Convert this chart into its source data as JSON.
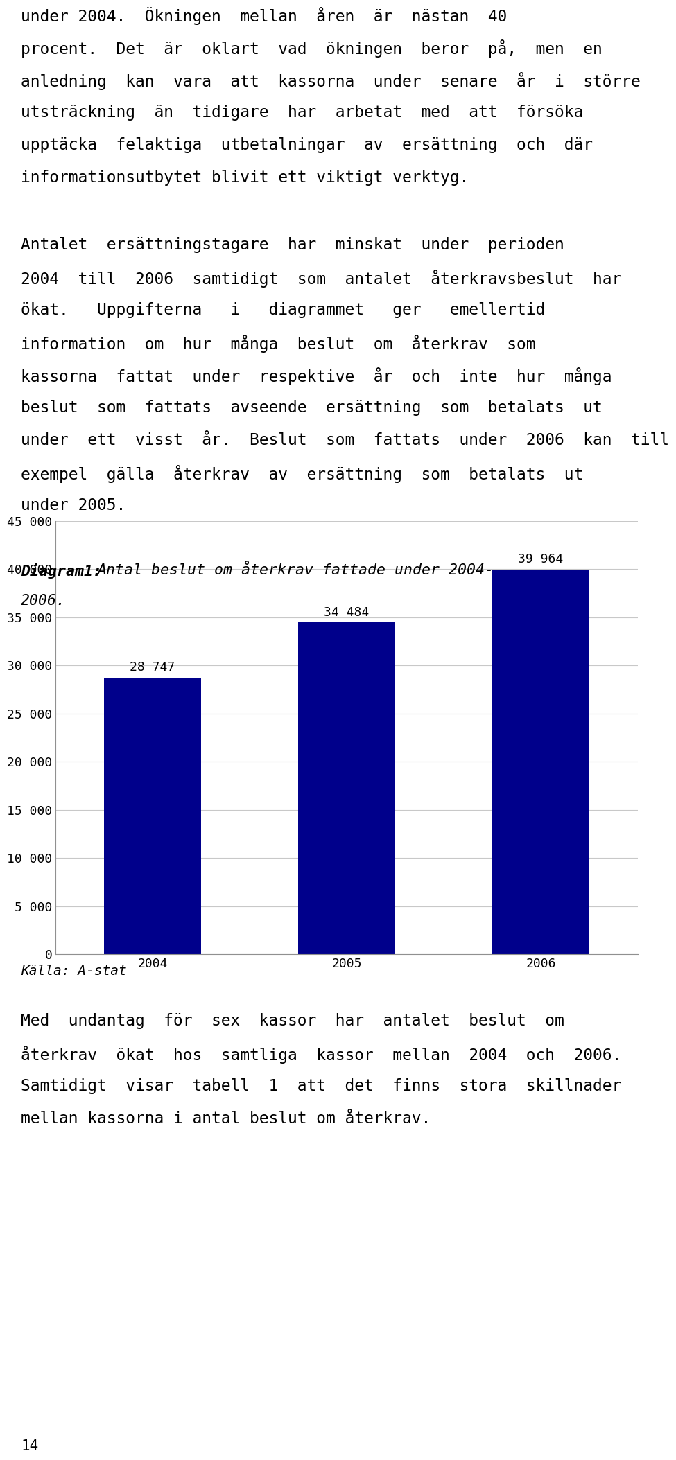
{
  "para1_lines": [
    "under 2004.  Ökningen  mellan  åren  är  nästan  40",
    "procent.  Det  är  oklart  vad  ökningen  beror  på,  men  en",
    "anledning  kan  vara  att  kassorna  under  senare  år  i  större",
    "utsträckning  än  tidigare  har  arbetat  med  att  försöka",
    "upptäcka  felaktiga  utbetalningar  av  ersättning  och  där",
    "informationsutbytet blivit ett viktigt verktyg."
  ],
  "para2_lines": [
    "Antalet  ersättningstagare  har  minskat  under  perioden",
    "2004  till  2006  samtidigt  som  antalet  återkravsbeslut  har",
    "ökat.   Uppgifterna   i   diagrammet   ger   emellertid",
    "information  om  hur  många  beslut  om  återkrav  som",
    "kassorna  fattat  under  respektive  år  och  inte  hur  många",
    "beslut  som  fattats  avseende  ersättning  som  betalats  ut",
    "under  ett  visst  år.  Beslut  som  fattats  under  2006  kan  till",
    "exempel  gälla  återkrav  av  ersättning  som  betalats  ut",
    "under 2005."
  ],
  "diagram_title_bold": "Diagram1:",
  "diagram_title_italic": " Antal beslut om återkrav fattade under 2004-\n2006.",
  "categories": [
    "2004",
    "2005",
    "2006"
  ],
  "values": [
    28747,
    34484,
    39964
  ],
  "bar_color": "#00008B",
  "ylim": [
    0,
    45000
  ],
  "yticks": [
    0,
    5000,
    10000,
    15000,
    20000,
    25000,
    30000,
    35000,
    40000,
    45000
  ],
  "source_label": "Källa: A-stat",
  "post_para_lines": [
    "Med  undantag  för  sex  kassor  har  antalet  beslut  om",
    "återkrav  ökat  hos  samtliga  kassor  mellan  2004  och  2006.",
    "Samtidigt  visar  tabell  1  att  det  finns  stora  skillnader",
    "mellan kassorna i antal beslut om återkrav."
  ],
  "footer": "14",
  "bar_labels": [
    "28 747",
    "34 484",
    "39 964"
  ],
  "text_color": "#000000",
  "bg_color": "#ffffff",
  "chart_bg": "#ffffff",
  "grid_color": "#c8c8c8",
  "font_size_body": 16.5,
  "font_size_diagram_title": 15.5,
  "font_size_bar_label": 13,
  "font_size_axis": 13,
  "font_size_source": 14,
  "font_size_footer": 15
}
